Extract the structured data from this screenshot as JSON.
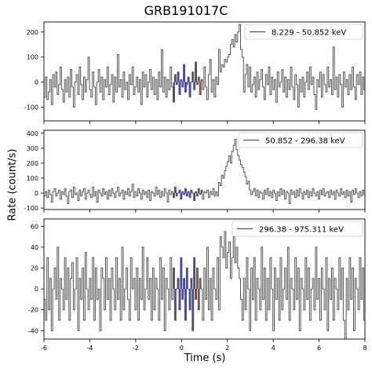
{
  "figure": {
    "title": "GRB191017C",
    "ylabel": "Rate (count/s)",
    "xlabel": "Time (s)"
  },
  "colors": {
    "line": "#555555",
    "blue_region": "#3a3aff",
    "red_region": "#ff3030"
  },
  "chart_data": [
    {
      "type": "line",
      "legend": "8.229 - 50.852 keV",
      "legend_placement": "top-right",
      "xlim": [
        -6,
        8
      ],
      "ylim": [
        -155,
        240
      ],
      "yticks": [
        -100,
        0,
        100,
        200
      ],
      "xticks": [
        -6,
        -4,
        -2,
        0,
        2,
        4,
        6,
        8
      ],
      "show_xtick_labels": false,
      "binsize": 0.064,
      "highlight_blue": [
        -0.384,
        0.64
      ],
      "highlight_red": [
        0.64,
        0.896
      ],
      "values": [
        -60,
        20,
        -70,
        -40,
        10,
        -90,
        30,
        -20,
        40,
        -50,
        -10,
        60,
        -30,
        -80,
        10,
        -40,
        20,
        -60,
        50,
        -20,
        -100,
        0,
        30,
        -50,
        60,
        -10,
        -70,
        20,
        -40,
        10,
        100,
        -30,
        -60,
        40,
        -20,
        -90,
        0,
        50,
        -40,
        20,
        -70,
        10,
        -20,
        60,
        -50,
        -10,
        30,
        -80,
        20,
        -40,
        110,
        -20,
        10,
        -60,
        40,
        -30,
        0,
        -70,
        30,
        -10,
        60,
        -50,
        -20,
        20,
        -40,
        10,
        -90,
        40,
        -20,
        30,
        -60,
        0,
        50,
        -30,
        20,
        -50,
        10,
        -70,
        40,
        -20,
        130,
        -40,
        20,
        -60,
        10,
        -30,
        60,
        -20,
        -80,
        30,
        -10,
        40,
        -50,
        10,
        -20,
        70,
        -40,
        -10,
        20,
        -60,
        0,
        40,
        -30,
        80,
        -10,
        20,
        -50,
        10,
        -30,
        60,
        -20,
        -70,
        30,
        90,
        -40,
        10,
        -60,
        20,
        -10,
        130,
        40,
        70,
        60,
        90,
        80,
        100,
        110,
        150,
        170,
        140,
        190,
        160,
        200,
        230,
        130,
        100,
        -40,
        30,
        70,
        -20,
        60,
        -40,
        -10,
        20,
        -60,
        40,
        -30,
        10,
        50,
        -20,
        -70,
        30,
        -10,
        60,
        -50,
        20,
        -30,
        10,
        -80,
        40,
        -20,
        0,
        50,
        -40,
        20,
        -60,
        10,
        -30,
        60,
        -20,
        -70,
        30,
        -10,
        -100,
        10,
        -40,
        20,
        -60,
        0,
        40,
        -30,
        60,
        -10,
        20,
        -50,
        -110,
        10,
        -20,
        40,
        -60,
        30,
        -10,
        -40,
        60,
        -20,
        10,
        -50,
        140,
        -30,
        20,
        -60,
        30,
        -10,
        -100,
        40,
        -20,
        10,
        -50,
        30,
        -30,
        60,
        -20,
        -70,
        30,
        -10,
        40,
        -50,
        20,
        -30,
        10,
        -80,
        20,
        -40,
        30,
        -60,
        0,
        20,
        -30,
        10,
        -50,
        30,
        -20,
        40,
        -10,
        -60
      ]
    },
    {
      "type": "line",
      "legend": "50.852 - 296.38 keV",
      "legend_placement": "top-right",
      "xlim": [
        -6,
        8
      ],
      "ylim": [
        -110,
        420
      ],
      "yticks": [
        -100,
        0,
        100,
        200,
        300,
        400
      ],
      "xticks": [
        -6,
        -4,
        -2,
        0,
        2,
        4,
        6,
        8
      ],
      "show_xtick_labels": false,
      "binsize": 0.064,
      "highlight_blue": [
        -0.384,
        0.64
      ],
      "highlight_red": [
        0.64,
        0.896
      ],
      "values": [
        -20,
        10,
        -30,
        20,
        -10,
        -60,
        10,
        30,
        -20,
        0,
        20,
        -40,
        10,
        -10,
        30,
        -20,
        -70,
        10,
        20,
        -30,
        40,
        -10,
        0,
        -50,
        20,
        -20,
        10,
        30,
        -40,
        0,
        20,
        -10,
        -30,
        40,
        -20,
        10,
        -60,
        20,
        0,
        -20,
        30,
        -10,
        10,
        -40,
        20,
        -20,
        30,
        0,
        -30,
        10,
        40,
        -20,
        0,
        20,
        -40,
        10,
        -10,
        30,
        -20,
        10,
        60,
        -30,
        10,
        -20,
        30,
        0,
        -40,
        20,
        -10,
        10,
        -30,
        20,
        -50,
        10,
        0,
        -20,
        40,
        -10,
        20,
        -30,
        10,
        -20,
        30,
        0,
        -60,
        20,
        -10,
        10,
        -30,
        40,
        -20,
        0,
        20,
        -40,
        10,
        -10,
        30,
        -20,
        10,
        -30,
        20,
        0,
        -50,
        10,
        -20,
        30,
        -10,
        20,
        -40,
        10,
        0,
        20,
        -30,
        10,
        -10,
        30,
        -20,
        10,
        -20,
        70,
        50,
        120,
        100,
        150,
        180,
        210,
        250,
        200,
        280,
        320,
        360,
        290,
        250,
        220,
        190,
        170,
        140,
        110,
        60,
        80,
        20,
        -10,
        10,
        30,
        -20,
        20,
        -30,
        10,
        0,
        -40,
        20,
        -10,
        30,
        -20,
        10,
        -30,
        20,
        0,
        -50,
        10,
        -20,
        30,
        -10,
        20,
        -40,
        10,
        0,
        -70,
        20,
        -10,
        10,
        -30,
        20,
        -20,
        30,
        0,
        -40,
        10,
        -10,
        20,
        -30,
        10,
        -20,
        30,
        0,
        -20,
        10,
        -40,
        20,
        -10,
        30,
        -20,
        0,
        10,
        -30,
        20,
        -10,
        10,
        -40,
        20,
        0,
        -20,
        30,
        -10,
        10,
        -30,
        20,
        -20,
        10,
        -60,
        20,
        -10,
        30,
        0,
        -30,
        10,
        -20,
        20,
        -10,
        30,
        -40,
        10,
        0,
        -20,
        20,
        -30,
        10,
        -10,
        30,
        -20,
        10,
        -40,
        20,
        0,
        -20
      ]
    },
    {
      "type": "line",
      "legend": "296.38 - 975.311 keV",
      "legend_placement": "top-right",
      "xlim": [
        -6,
        8
      ],
      "ylim": [
        -48,
        67
      ],
      "yticks": [
        -40,
        -20,
        0,
        20,
        40,
        60
      ],
      "xticks": [
        -6,
        -4,
        -2,
        0,
        2,
        4,
        6,
        8
      ],
      "show_xtick_labels": true,
      "binsize": 0.064,
      "highlight_blue": [
        -0.384,
        0.64
      ],
      "highlight_red": [
        0.64,
        0.896
      ],
      "values": [
        -10,
        -30,
        30,
        -20,
        10,
        -40,
        0,
        20,
        -10,
        40,
        -30,
        10,
        0,
        -20,
        30,
        -10,
        20,
        -30,
        10,
        25,
        -20,
        0,
        30,
        -40,
        10,
        -10,
        20,
        -30,
        35,
        0,
        -20,
        10,
        -10,
        30,
        -30,
        20,
        -10,
        0,
        -40,
        20,
        10,
        -20,
        30,
        -10,
        10,
        -30,
        20,
        0,
        -20,
        30,
        -10,
        10,
        -30,
        40,
        -20,
        0,
        20,
        -10,
        -30,
        30,
        0,
        10,
        -20,
        20,
        -30,
        10,
        -10,
        40,
        -20,
        0,
        30,
        -10,
        10,
        -30,
        20,
        -20,
        10,
        0,
        -30,
        30,
        -10,
        20,
        -40,
        10,
        0,
        -20,
        30,
        -10,
        20,
        -30,
        0,
        10,
        -20,
        30,
        -10,
        10,
        -30,
        20,
        0,
        -20,
        10,
        -40,
        30,
        -10,
        20,
        -20,
        10,
        0,
        -30,
        20,
        -10,
        40,
        -20,
        10,
        -30,
        20,
        0,
        -10,
        30,
        -20,
        50,
        40,
        30,
        55,
        20,
        35,
        45,
        10,
        30,
        50,
        25,
        40,
        20,
        10,
        -10,
        -30,
        10,
        -20,
        30,
        0,
        -40,
        20,
        -10,
        30,
        -30,
        10,
        0,
        -20,
        40,
        -10,
        20,
        -30,
        10,
        -20,
        30,
        0,
        -40,
        20,
        -10,
        10,
        -30,
        30,
        -20,
        0,
        20,
        -10,
        40,
        -30,
        10,
        0,
        -20,
        30,
        -10,
        20,
        -40,
        10,
        0,
        -20,
        30,
        -10,
        20,
        -30,
        0,
        10,
        -20,
        40,
        -10,
        10,
        -30,
        20,
        0,
        -20,
        30,
        -40,
        10,
        -10,
        20,
        -30,
        10,
        0,
        -20,
        30,
        -10,
        20,
        -30,
        -50,
        10,
        -20,
        30,
        -10,
        20,
        -40,
        10,
        0,
        -20,
        30,
        -10,
        20,
        -30,
        10,
        0,
        -20,
        40,
        -10,
        10,
        -30,
        20
      ]
    }
  ]
}
